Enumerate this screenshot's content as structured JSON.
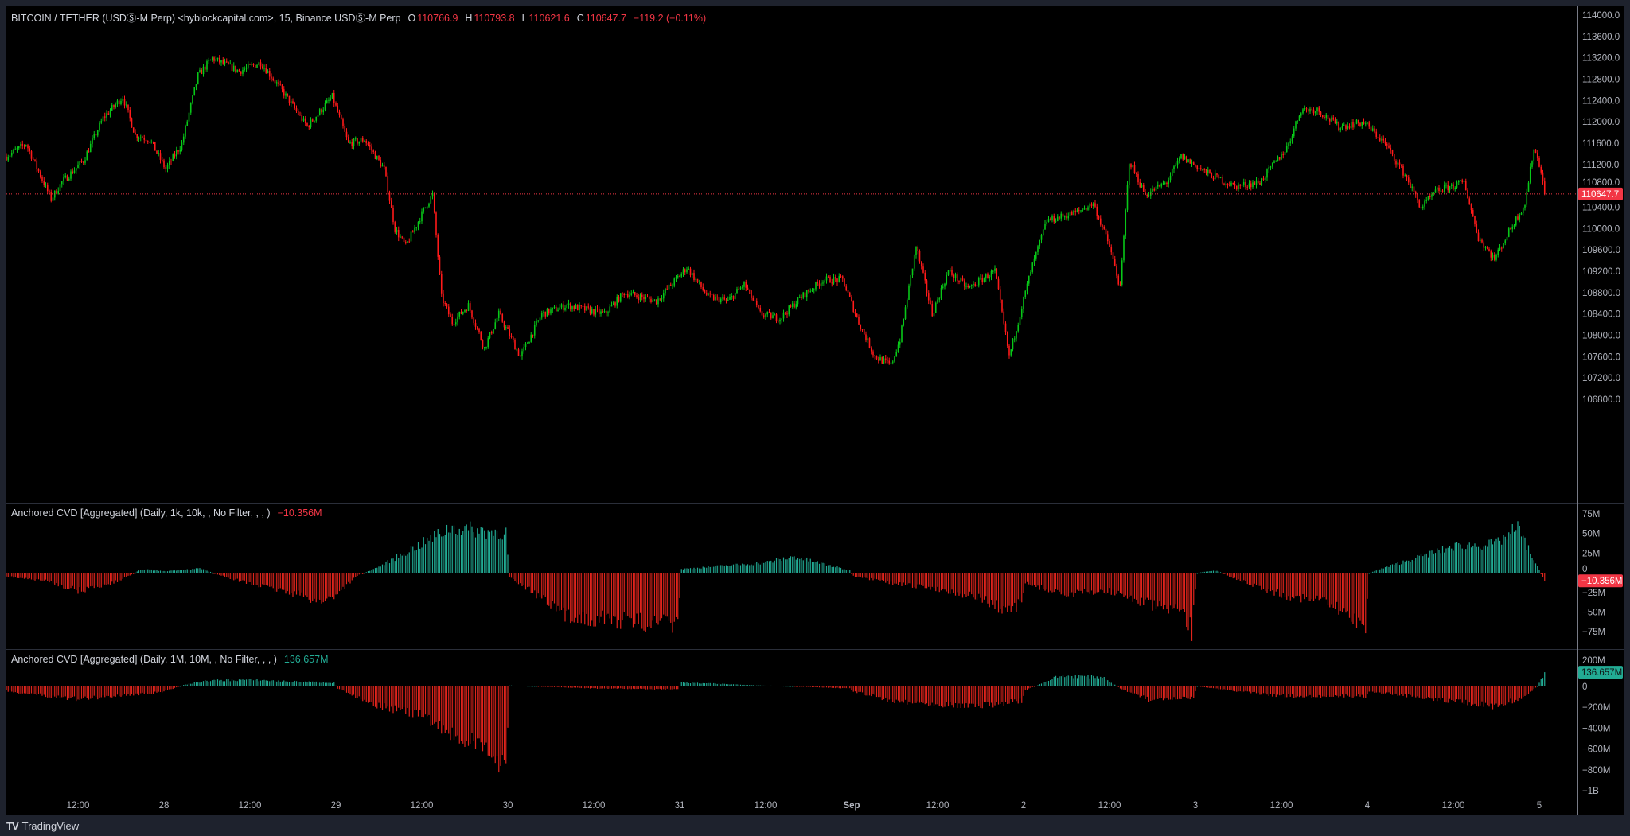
{
  "legend": {
    "symbol": "BITCOIN / TETHER (USDⓈ-M Perp) <hyblockcapital.com>, 15, Binance USDⓈ-M Perp",
    "o_label": "O",
    "o_value": "110766.9",
    "h_label": "H",
    "h_value": "110793.8",
    "l_label": "L",
    "l_value": "110621.6",
    "c_label": "C",
    "c_value": "110647.7",
    "change": "−119.2 (−0.11%)"
  },
  "cvd1": {
    "title": "Anchored CVD [Aggregated] (Daily, 1k, 10k, , No Filter, , , )",
    "value": "−10.356M"
  },
  "cvd2": {
    "title": "Anchored CVD [Aggregated] (Daily, 1M, 10M, , No Filter, , , )",
    "value": "136.657M"
  },
  "footer": {
    "brand": "TradingView",
    "logo": "TV"
  },
  "colors": {
    "up": "#08c818",
    "down": "#ff1a1a",
    "cvd_pos": "#22ab94",
    "cvd_neg": "#e0241c",
    "last_price": "#f23645",
    "last_cvd2": "#22ab94"
  },
  "chart_data": [
    {
      "type": "candlestick",
      "interval": "15",
      "price_ticks": [
        "114000.0",
        "113600.0",
        "113200.0",
        "112800.0",
        "112400.0",
        "112000.0",
        "111600.0",
        "111200.0",
        "110800.0",
        "110400.0",
        "110000.0",
        "109600.0",
        "109200.0",
        "108800.0",
        "108400.0",
        "108000.0",
        "107600.0",
        "107200.0",
        "106800.0"
      ],
      "ylim": [
        106800,
        114000
      ],
      "last_price": "110647.7",
      "close_path": [
        [
          "Aug 27 02:00",
          111350
        ],
        [
          "Aug 27 04:45",
          111590
        ],
        [
          "Aug 27 08:15",
          110550
        ],
        [
          "Aug 27 09:45",
          110870
        ],
        [
          "Aug 27 12:45",
          111270
        ],
        [
          "Aug 27 15:30",
          112070
        ],
        [
          "Aug 27 18:15",
          112470
        ],
        [
          "Aug 27 20:00",
          111750
        ],
        [
          "Aug 27 22:00",
          111670
        ],
        [
          "Aug 28 00:15",
          111110
        ],
        [
          "Aug 28 02:30",
          111590
        ],
        [
          "Aug 28 04:45",
          112870
        ],
        [
          "Aug 28 06:45",
          113190
        ],
        [
          "Aug 28 10:30",
          112950
        ],
        [
          "Aug 28 13:30",
          113110
        ],
        [
          "Aug 28 16:15",
          112630
        ],
        [
          "Aug 28 20:00",
          111910
        ],
        [
          "Aug 28 23:30",
          112470
        ],
        [
          "Aug 29 01:45",
          111590
        ],
        [
          "Aug 29 04:00",
          111670
        ],
        [
          "Aug 29 06:45",
          111110
        ],
        [
          "Aug 29 08:15",
          109990
        ],
        [
          "Aug 29 09:45",
          109670
        ],
        [
          "Aug 29 12:45",
          110470
        ],
        [
          "Aug 29 13:30",
          110630
        ],
        [
          "Aug 29 14:45",
          108720
        ],
        [
          "Aug 29 16:15",
          108240
        ],
        [
          "Aug 29 18:30",
          108560
        ],
        [
          "Aug 29 20:45",
          107760
        ],
        [
          "Aug 29 22:45",
          108400
        ],
        [
          "Aug 30 01:45",
          107600
        ],
        [
          "Aug 30 04:45",
          108400
        ],
        [
          "Aug 30 08:15",
          108560
        ],
        [
          "Aug 30 13:30",
          108400
        ],
        [
          "Aug 30 16:15",
          108800
        ],
        [
          "Aug 30 20:45",
          108640
        ],
        [
          "Aug 31 01:00",
          109270
        ],
        [
          "Aug 31 04:00",
          108720
        ],
        [
          "Aug 31 06:45",
          108640
        ],
        [
          "Aug 31 09:00",
          108960
        ],
        [
          "Aug 31 11:15",
          108400
        ],
        [
          "Aug 31 14:00",
          108320
        ],
        [
          "Aug 31 17:00",
          108720
        ],
        [
          "Aug 31 20:00",
          109040
        ],
        [
          "Aug 31 22:45",
          109040
        ],
        [
          "Sep 1 01:00",
          108240
        ],
        [
          "Sep 1 03:15",
          107600
        ],
        [
          "Sep 1 05:30",
          107440
        ],
        [
          "Sep 1 06:45",
          107920
        ],
        [
          "Sep 1 09:00",
          109670
        ],
        [
          "Sep 1 11:15",
          108400
        ],
        [
          "Sep 1 13:30",
          109200
        ],
        [
          "Sep 1 16:15",
          108880
        ],
        [
          "Sep 1 20:00",
          109200
        ],
        [
          "Sep 1 22:00",
          107600
        ],
        [
          "Sep 2 01:00",
          109200
        ],
        [
          "Sep 2 03:15",
          110150
        ],
        [
          "Sep 2 05:30",
          110230
        ],
        [
          "Sep 2 07:30",
          110310
        ],
        [
          "Sep 2 09:45",
          110470
        ],
        [
          "Sep 2 12:00",
          109670
        ],
        [
          "Sep 2 13:30",
          108880
        ],
        [
          "Sep 2 14:45",
          111270
        ],
        [
          "Sep 2 17:00",
          110630
        ],
        [
          "Sep 2 20:00",
          110870
        ],
        [
          "Sep 2 22:00",
          111350
        ],
        [
          "Sep 3 01:45",
          111030
        ],
        [
          "Sep 3 05:30",
          110790
        ],
        [
          "Sep 3 09:00",
          110870
        ],
        [
          "Sep 3 12:45",
          111510
        ],
        [
          "Sep 3 14:45",
          112230
        ],
        [
          "Sep 3 17:00",
          112230
        ],
        [
          "Sep 3 20:00",
          111910
        ],
        [
          "Sep 3 23:30",
          111990
        ],
        [
          "Sep 4 02:30",
          111590
        ],
        [
          "Sep 4 05:30",
          110950
        ],
        [
          "Sep 4 07:30",
          110390
        ],
        [
          "Sep 4 09:45",
          110710
        ],
        [
          "Sep 4 13:30",
          110870
        ],
        [
          "Sep 4 15:30",
          109830
        ],
        [
          "Sep 4 17:45",
          109430
        ],
        [
          "Sep 4 20:00",
          110000
        ],
        [
          "Sep 4 22:00",
          110470
        ],
        [
          "Sep 4 23:15",
          111510
        ],
        [
          "Sep 5 00:15",
          111110
        ],
        [
          "Sep 5 00:45",
          110647.7
        ]
      ]
    },
    {
      "type": "bar",
      "ticks": [
        "75M",
        "50M",
        "25M",
        "0",
        "−25M",
        "−50M",
        "−75M"
      ],
      "ylim": [
        -90,
        90
      ],
      "unit": "M",
      "path": [
        [
          "Aug 27 02:00",
          -5
        ],
        [
          "Aug 27 08:00",
          -12
        ],
        [
          "Aug 27 12:00",
          -25
        ],
        [
          "Aug 27 17:00",
          -14
        ],
        [
          "Aug 27 21:00",
          5
        ],
        [
          "Aug 28 00:00",
          2
        ],
        [
          "Aug 28 05:00",
          6
        ],
        [
          "Aug 28 08:00",
          -4
        ],
        [
          "Aug 28 12:00",
          -15
        ],
        [
          "Aug 28 18:00",
          -28
        ],
        [
          "Aug 28 22:00",
          -40
        ],
        [
          "Aug 28 23:45",
          -32
        ],
        [
          "Aug 29 03:00",
          -4
        ],
        [
          "Aug 29 06:00",
          8
        ],
        [
          "Aug 29 12:00",
          40
        ],
        [
          "Aug 29 16:00",
          62
        ],
        [
          "Aug 29 23:45",
          55
        ],
        [
          "Aug 30 00:15",
          -5
        ],
        [
          "Aug 30 04:00",
          -30
        ],
        [
          "Aug 30 08:00",
          -60
        ],
        [
          "Aug 30 23:45",
          -72
        ],
        [
          "Aug 31 00:15",
          5
        ],
        [
          "Aug 31 12:00",
          14
        ],
        [
          "Aug 31 16:00",
          22
        ],
        [
          "Aug 31 23:45",
          3
        ],
        [
          "Sep 1 00:15",
          -5
        ],
        [
          "Sep 1 06:00",
          -15
        ],
        [
          "Sep 1 12:00",
          -22
        ],
        [
          "Sep 1 18:00",
          -35
        ],
        [
          "Sep 1 22:00",
          -55
        ],
        [
          "Sep 1 23:45",
          -40
        ],
        [
          "Sep 2 00:15",
          -15
        ],
        [
          "Sep 2 06:00",
          -30
        ],
        [
          "Sep 2 12:00",
          -25
        ],
        [
          "Sep 2 18:00",
          -45
        ],
        [
          "Sep 2 22:00",
          -55
        ],
        [
          "Sep 2 23:30",
          -80
        ],
        [
          "Sep 3 00:15",
          0
        ],
        [
          "Sep 3 03:00",
          3
        ],
        [
          "Sep 3 06:00",
          -10
        ],
        [
          "Sep 3 12:00",
          -30
        ],
        [
          "Sep 3 18:00",
          -40
        ],
        [
          "Sep 3 23:45",
          -72
        ],
        [
          "Sep 4 00:15",
          0
        ],
        [
          "Sep 4 06:00",
          18
        ],
        [
          "Sep 4 12:00",
          36
        ],
        [
          "Sep 4 18:00",
          40
        ],
        [
          "Sep 4 21:00",
          62
        ],
        [
          "Sep 4 23:45",
          8
        ],
        [
          "Sep 5 00:45",
          -10.356
        ]
      ],
      "last_value": "−10.356M"
    },
    {
      "type": "bar",
      "ticks": [
        "200M",
        "0",
        "−200M",
        "−400M",
        "−600M",
        "−800M",
        "−1B"
      ],
      "ylim": [
        -1000,
        200
      ],
      "unit": "M",
      "path": [
        [
          "Aug 27 02:00",
          -50
        ],
        [
          "Aug 27 12:00",
          -130
        ],
        [
          "Aug 27 20:00",
          -80
        ],
        [
          "Aug 27 23:45",
          -60
        ],
        [
          "Aug 28 03:00",
          20
        ],
        [
          "Aug 28 06:00",
          60
        ],
        [
          "Aug 28 12:00",
          70
        ],
        [
          "Aug 28 18:00",
          50
        ],
        [
          "Aug 28 23:45",
          40
        ],
        [
          "Aug 29 00:15",
          -20
        ],
        [
          "Aug 29 06:00",
          -200
        ],
        [
          "Aug 29 12:00",
          -300
        ],
        [
          "Aug 29 16:00",
          -500
        ],
        [
          "Aug 29 22:00",
          -700
        ],
        [
          "Aug 29 23:45",
          -850
        ],
        [
          "Aug 30 00:15",
          10
        ],
        [
          "Aug 30 12:00",
          -20
        ],
        [
          "Aug 30 23:45",
          -30
        ],
        [
          "Aug 31 00:15",
          40
        ],
        [
          "Aug 31 12:00",
          10
        ],
        [
          "Aug 31 23:45",
          -20
        ],
        [
          "Sep 1 00:15",
          -50
        ],
        [
          "Sep 1 06:00",
          -150
        ],
        [
          "Sep 1 12:00",
          -180
        ],
        [
          "Sep 1 18:00",
          -200
        ],
        [
          "Sep 1 23:45",
          -150
        ],
        [
          "Sep 2 00:15",
          -40
        ],
        [
          "Sep 2 05:00",
          110
        ],
        [
          "Sep 2 11:00",
          100
        ],
        [
          "Sep 2 13:30",
          -20
        ],
        [
          "Sep 2 18:00",
          -150
        ],
        [
          "Sep 2 23:45",
          -120
        ],
        [
          "Sep 3 00:15",
          0
        ],
        [
          "Sep 3 12:00",
          -100
        ],
        [
          "Sep 3 23:45",
          -100
        ],
        [
          "Sep 4 00:15",
          -50
        ],
        [
          "Sep 4 12:00",
          -150
        ],
        [
          "Sep 4 18:00",
          -210
        ],
        [
          "Sep 4 22:00",
          -100
        ],
        [
          "Sep 4 23:45",
          0
        ],
        [
          "Sep 5 00:45",
          136.657
        ]
      ],
      "last_value": "136.657M"
    }
  ],
  "time_axis": [
    "12:00",
    "28",
    "12:00",
    "29",
    "12:00",
    "30",
    "12:00",
    "31",
    "12:00",
    "Sep",
    "12:00",
    "2",
    "12:00",
    "3",
    "12:00",
    "4",
    "12:00",
    "5"
  ]
}
